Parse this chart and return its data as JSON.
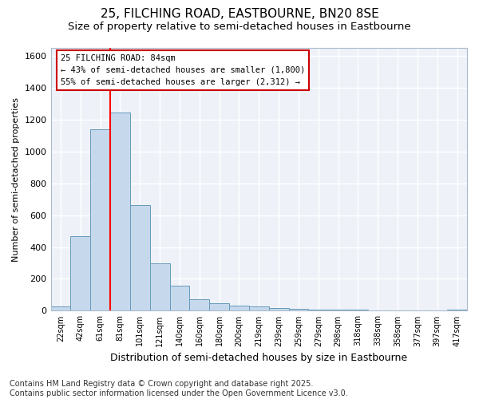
{
  "title1": "25, FILCHING ROAD, EASTBOURNE, BN20 8SE",
  "title2": "Size of property relative to semi-detached houses in Eastbourne",
  "xlabel": "Distribution of semi-detached houses by size in Eastbourne",
  "ylabel": "Number of semi-detached properties",
  "categories": [
    "22sqm",
    "42sqm",
    "61sqm",
    "81sqm",
    "101sqm",
    "121sqm",
    "140sqm",
    "160sqm",
    "180sqm",
    "200sqm",
    "219sqm",
    "239sqm",
    "259sqm",
    "279sqm",
    "298sqm",
    "318sqm",
    "338sqm",
    "358sqm",
    "377sqm",
    "397sqm",
    "417sqm"
  ],
  "values": [
    25,
    470,
    1140,
    1245,
    665,
    300,
    155,
    70,
    45,
    30,
    25,
    15,
    10,
    8,
    5,
    5,
    3,
    3,
    2,
    2,
    5
  ],
  "bar_color": "#c6d9ec",
  "bar_edge_color": "#6699bb",
  "red_line_x": 3,
  "annotation_text": "25 FILCHING ROAD: 84sqm\n← 43% of semi-detached houses are smaller (1,800)\n55% of semi-detached houses are larger (2,312) →",
  "annotation_box_facecolor": "#ffffff",
  "annotation_box_edgecolor": "#cc0000",
  "ylim": [
    0,
    1650
  ],
  "yticks": [
    0,
    200,
    400,
    600,
    800,
    1000,
    1200,
    1400,
    1600
  ],
  "footer": "Contains HM Land Registry data © Crown copyright and database right 2025.\nContains public sector information licensed under the Open Government Licence v3.0.",
  "title1_fontsize": 11,
  "title2_fontsize": 9.5,
  "xlabel_fontsize": 9,
  "ylabel_fontsize": 8,
  "footer_fontsize": 7,
  "fig_bg_color": "#ffffff",
  "plot_bg_color": "#eef2f8",
  "grid_color": "#ffffff",
  "spine_color": "#aabbcc"
}
